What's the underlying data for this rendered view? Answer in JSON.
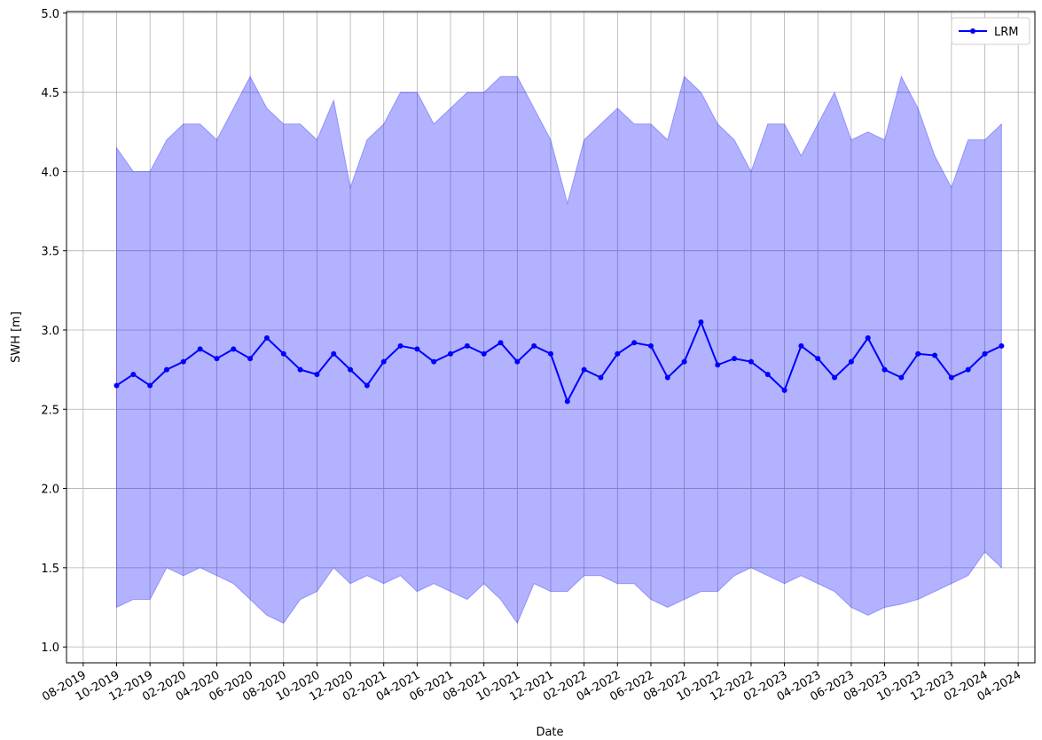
{
  "chart_data": {
    "type": "line",
    "xlabel": "Date",
    "ylabel": "SWH [m]",
    "x": [
      "2019-10",
      "2019-11",
      "2019-12",
      "2020-01",
      "2020-02",
      "2020-03",
      "2020-04",
      "2020-05",
      "2020-06",
      "2020-07",
      "2020-08",
      "2020-09",
      "2020-10",
      "2020-11",
      "2020-12",
      "2021-01",
      "2021-02",
      "2021-03",
      "2021-04",
      "2021-05",
      "2021-06",
      "2021-07",
      "2021-08",
      "2021-09",
      "2021-10",
      "2021-11",
      "2021-12",
      "2022-01",
      "2022-02",
      "2022-03",
      "2022-04",
      "2022-05",
      "2022-06",
      "2022-07",
      "2022-08",
      "2022-09",
      "2022-10",
      "2022-11",
      "2022-12",
      "2023-01",
      "2023-02",
      "2023-03",
      "2023-04",
      "2023-05",
      "2023-06",
      "2023-07",
      "2023-08",
      "2023-09",
      "2023-10",
      "2023-11",
      "2023-12",
      "2024-01",
      "2024-02",
      "2024-03"
    ],
    "series": [
      {
        "name": "LRM",
        "color": "#0000ff",
        "values": [
          2.65,
          2.72,
          2.65,
          2.75,
          2.8,
          2.88,
          2.82,
          2.88,
          2.82,
          2.95,
          2.85,
          2.75,
          2.72,
          2.85,
          2.75,
          2.65,
          2.8,
          2.9,
          2.88,
          2.8,
          2.85,
          2.9,
          2.85,
          2.92,
          2.8,
          2.9,
          2.85,
          2.55,
          2.75,
          2.7,
          2.85,
          2.92,
          2.9,
          2.7,
          2.8,
          3.05,
          2.78,
          2.82,
          2.8,
          2.72,
          2.62,
          2.9,
          2.82,
          2.7,
          2.8,
          2.95,
          2.75,
          2.7,
          2.85,
          2.84,
          2.7,
          2.75,
          2.85,
          2.9
        ]
      }
    ],
    "band": {
      "color": "#0000ff",
      "upper": [
        4.15,
        4.0,
        4.0,
        4.2,
        4.3,
        4.3,
        4.2,
        4.4,
        4.6,
        4.4,
        4.3,
        4.3,
        4.2,
        4.45,
        3.9,
        4.2,
        4.3,
        4.5,
        4.5,
        4.3,
        4.4,
        4.5,
        4.5,
        4.6,
        4.6,
        4.4,
        4.2,
        3.8,
        4.2,
        4.3,
        4.4,
        4.3,
        4.3,
        4.2,
        4.6,
        4.5,
        4.3,
        4.2,
        4.0,
        4.3,
        4.3,
        4.1,
        4.3,
        4.5,
        4.2,
        4.25,
        4.2,
        4.6,
        4.4,
        4.1,
        3.9,
        4.2,
        4.2,
        4.3
      ],
      "lower": [
        1.25,
        1.3,
        1.3,
        1.5,
        1.45,
        1.5,
        1.45,
        1.4,
        1.3,
        1.2,
        1.15,
        1.3,
        1.35,
        1.5,
        1.4,
        1.45,
        1.4,
        1.45,
        1.35,
        1.4,
        1.35,
        1.3,
        1.4,
        1.3,
        1.15,
        1.4,
        1.35,
        1.35,
        1.45,
        1.45,
        1.4,
        1.4,
        1.3,
        1.25,
        1.3,
        1.35,
        1.35,
        1.45,
        1.5,
        1.45,
        1.4,
        1.45,
        1.4,
        1.35,
        1.25,
        1.2,
        1.25,
        1.27,
        1.3,
        1.35,
        1.4,
        1.45,
        1.6,
        1.5
      ]
    },
    "xlim": [
      "2019-07",
      "2024-05"
    ],
    "xticks": [
      {
        "value": "2019-08",
        "label": "08-2019"
      },
      {
        "value": "2019-10",
        "label": "10-2019"
      },
      {
        "value": "2019-12",
        "label": "12-2019"
      },
      {
        "value": "2020-02",
        "label": "02-2020"
      },
      {
        "value": "2020-04",
        "label": "04-2020"
      },
      {
        "value": "2020-06",
        "label": "06-2020"
      },
      {
        "value": "2020-08",
        "label": "08-2020"
      },
      {
        "value": "2020-10",
        "label": "10-2020"
      },
      {
        "value": "2020-12",
        "label": "12-2020"
      },
      {
        "value": "2021-02",
        "label": "02-2021"
      },
      {
        "value": "2021-04",
        "label": "04-2021"
      },
      {
        "value": "2021-06",
        "label": "06-2021"
      },
      {
        "value": "2021-08",
        "label": "08-2021"
      },
      {
        "value": "2021-10",
        "label": "10-2021"
      },
      {
        "value": "2021-12",
        "label": "12-2021"
      },
      {
        "value": "2022-02",
        "label": "02-2022"
      },
      {
        "value": "2022-04",
        "label": "04-2022"
      },
      {
        "value": "2022-06",
        "label": "06-2022"
      },
      {
        "value": "2022-08",
        "label": "08-2022"
      },
      {
        "value": "2022-10",
        "label": "10-2022"
      },
      {
        "value": "2022-12",
        "label": "12-2022"
      },
      {
        "value": "2023-02",
        "label": "02-2023"
      },
      {
        "value": "2023-04",
        "label": "04-2023"
      },
      {
        "value": "2023-06",
        "label": "06-2023"
      },
      {
        "value": "2023-08",
        "label": "08-2023"
      },
      {
        "value": "2023-10",
        "label": "10-2023"
      },
      {
        "value": "2023-12",
        "label": "12-2023"
      },
      {
        "value": "2024-02",
        "label": "02-2024"
      },
      {
        "value": "2024-04",
        "label": "04-2024"
      }
    ],
    "ylim": [
      0.9,
      5.01
    ],
    "yticks": [
      {
        "value": 1,
        "label": "1.0"
      },
      {
        "value": 1.5,
        "label": "1.5"
      },
      {
        "value": 2,
        "label": "2.0"
      },
      {
        "value": 2.5,
        "label": "2.5"
      },
      {
        "value": 3,
        "label": "3.0"
      },
      {
        "value": 3.5,
        "label": "3.5"
      },
      {
        "value": 4,
        "label": "4.0"
      },
      {
        "value": 4.5,
        "label": "4.5"
      },
      {
        "value": 5,
        "label": "5.0"
      }
    ],
    "grid": true,
    "legend": "upper right"
  }
}
